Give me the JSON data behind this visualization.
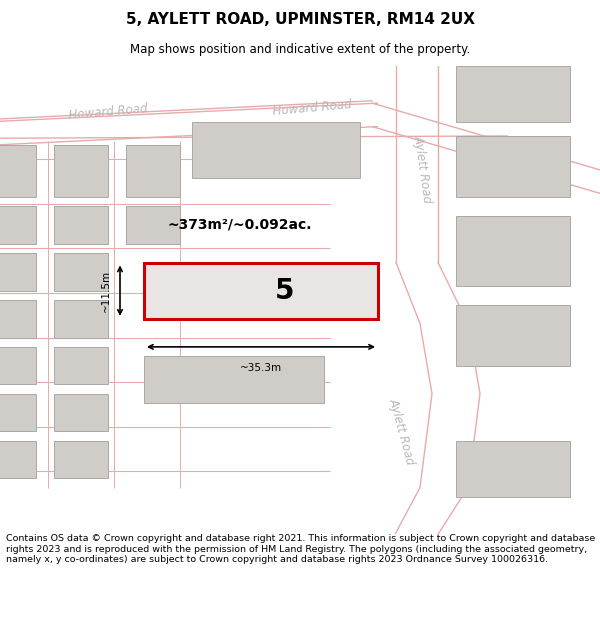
{
  "title": "5, AYLETT ROAD, UPMINSTER, RM14 2UX",
  "subtitle": "Map shows position and indicative extent of the property.",
  "footer": "Contains OS data © Crown copyright and database right 2021. This information is subject to Crown copyright and database rights 2023 and is reproduced with the permission of HM Land Registry. The polygons (including the associated geometry, namely x, y co-ordinates) are subject to Crown copyright and database rights 2023 Ordnance Survey 100026316.",
  "map_bg": "#f7f6f4",
  "road_line_color": "#e8aaaa",
  "building_fill": "#d0ccc8",
  "building_outline": "#aaa9a5",
  "highlight_fill": "#e8e5e2",
  "highlight_outline": "#cc0000",
  "road_label_color": "#b8b8b8",
  "area_label": "~373m²/~0.092ac.",
  "property_label": "5",
  "dim_width": "~35.3m",
  "dim_height": "~11.5m"
}
